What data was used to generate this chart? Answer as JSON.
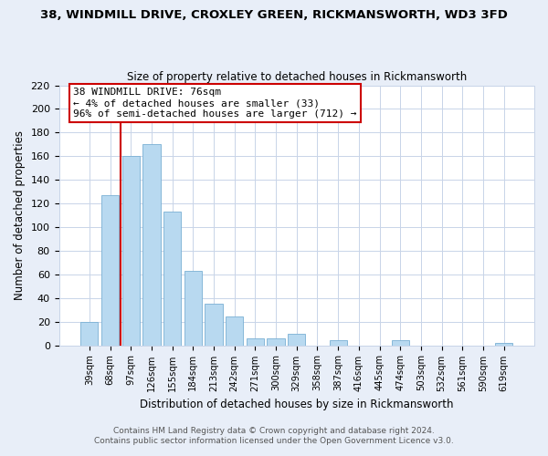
{
  "title": "38, WINDMILL DRIVE, CROXLEY GREEN, RICKMANSWORTH, WD3 3FD",
  "subtitle": "Size of property relative to detached houses in Rickmansworth",
  "xlabel": "Distribution of detached houses by size in Rickmansworth",
  "ylabel": "Number of detached properties",
  "bar_labels": [
    "39sqm",
    "68sqm",
    "97sqm",
    "126sqm",
    "155sqm",
    "184sqm",
    "213sqm",
    "242sqm",
    "271sqm",
    "300sqm",
    "329sqm",
    "358sqm",
    "387sqm",
    "416sqm",
    "445sqm",
    "474sqm",
    "503sqm",
    "532sqm",
    "561sqm",
    "590sqm",
    "619sqm"
  ],
  "bar_values": [
    20,
    127,
    160,
    170,
    113,
    63,
    35,
    24,
    6,
    6,
    10,
    0,
    4,
    0,
    0,
    4,
    0,
    0,
    0,
    0,
    2
  ],
  "bar_color": "#b8d9f0",
  "bar_edge_color": "#7ab0d4",
  "ylim": [
    0,
    220
  ],
  "yticks": [
    0,
    20,
    40,
    60,
    80,
    100,
    120,
    140,
    160,
    180,
    200,
    220
  ],
  "vline_color": "#cc0000",
  "annotation_title": "38 WINDMILL DRIVE: 76sqm",
  "annotation_line1": "← 4% of detached houses are smaller (33)",
  "annotation_line2": "96% of semi-detached houses are larger (712) →",
  "annotation_box_color": "#ffffff",
  "annotation_box_edge": "#cc0000",
  "footer1": "Contains HM Land Registry data © Crown copyright and database right 2024.",
  "footer2": "Contains public sector information licensed under the Open Government Licence v3.0.",
  "background_color": "#e8eef8",
  "plot_bg_color": "#ffffff",
  "grid_color": "#c8d4e8"
}
